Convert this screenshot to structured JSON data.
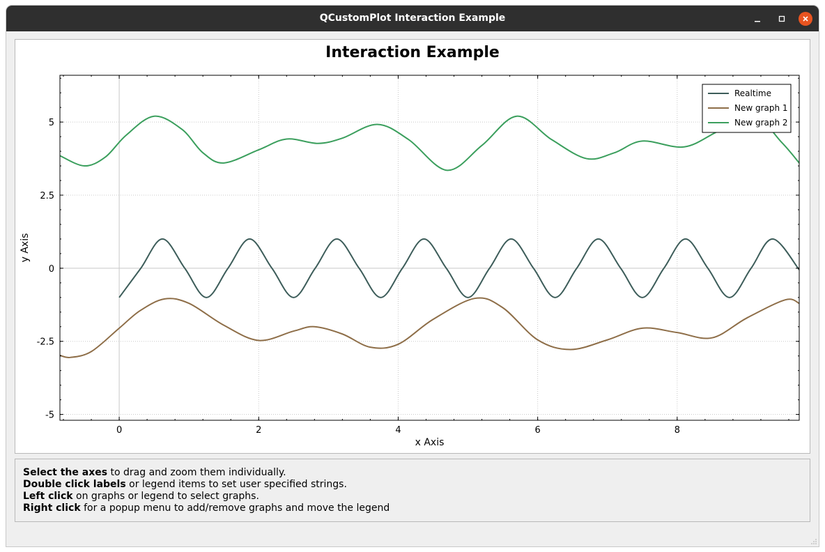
{
  "window": {
    "title": "QCustomPlot Interaction Example",
    "titlebar_color": "#2f2f2f",
    "close_color": "#e95420"
  },
  "plot": {
    "title": "Interaction Example",
    "legend_items": [
      "Realtime",
      "New graph 1",
      "New graph 2"
    ]
  },
  "chart_data": {
    "type": "line",
    "title": "Interaction Example",
    "xlabel": "x Axis",
    "ylabel": "y Axis",
    "xlim": [
      -0.85,
      9.75
    ],
    "ylim": [
      -5.2,
      6.6
    ],
    "x_ticks": [
      0,
      2,
      4,
      6,
      8
    ],
    "x_tick_labels": [
      "0",
      "2",
      "4",
      "6",
      "8"
    ],
    "y_ticks": [
      -5,
      -2.5,
      0,
      2.5,
      5
    ],
    "y_tick_labels": [
      "-5",
      "-2.5",
      "0",
      "2.5",
      "5"
    ],
    "grid": true,
    "legend_position": "top-right",
    "series": [
      {
        "name": "Realtime",
        "color": "#3d5d5a",
        "x": [
          0.0,
          0.31,
          0.62,
          0.94,
          1.25,
          1.56,
          1.87,
          2.19,
          2.5,
          2.81,
          3.12,
          3.44,
          3.75,
          4.06,
          4.37,
          4.69,
          5.0,
          5.31,
          5.62,
          5.94,
          6.25,
          6.56,
          6.87,
          7.19,
          7.5,
          7.81,
          8.12,
          8.44,
          8.75,
          9.06,
          9.37,
          9.75
        ],
        "y": [
          -1.0,
          0.0,
          1.0,
          0.0,
          -1.0,
          0.0,
          1.0,
          0.0,
          -1.0,
          0.0,
          1.0,
          0.0,
          -1.0,
          0.0,
          1.0,
          0.0,
          -1.0,
          0.0,
          1.0,
          0.0,
          -1.0,
          0.0,
          1.0,
          0.0,
          -1.0,
          0.0,
          1.0,
          0.0,
          -1.0,
          0.0,
          1.0,
          -0.05
        ]
      },
      {
        "name": "New graph 1",
        "color": "#8e6e48",
        "x": [
          -0.85,
          -0.7,
          -0.4,
          0.0,
          0.3,
          0.65,
          1.0,
          1.5,
          2.0,
          2.5,
          2.8,
          3.2,
          3.6,
          4.0,
          4.5,
          5.1,
          5.5,
          6.0,
          6.47,
          7.0,
          7.5,
          8.0,
          8.5,
          9.0,
          9.55,
          9.75
        ],
        "y": [
          -2.98,
          -3.05,
          -2.85,
          -2.05,
          -1.45,
          -1.05,
          -1.2,
          -1.95,
          -2.47,
          -2.15,
          -2.0,
          -2.25,
          -2.7,
          -2.6,
          -1.75,
          -1.03,
          -1.35,
          -2.45,
          -2.78,
          -2.45,
          -2.05,
          -2.2,
          -2.38,
          -1.7,
          -1.08,
          -1.2
        ]
      },
      {
        "name": "New graph 2",
        "color": "#3b9f5d",
        "x": [
          -0.85,
          -0.5,
          -0.2,
          0.1,
          0.5,
          0.9,
          1.2,
          1.5,
          2.0,
          2.4,
          2.85,
          3.2,
          3.7,
          4.15,
          4.7,
          5.2,
          5.7,
          6.2,
          6.7,
          7.1,
          7.5,
          8.1,
          8.6,
          9.1,
          9.5,
          9.75
        ],
        "y": [
          3.85,
          3.5,
          3.8,
          4.55,
          5.2,
          4.75,
          3.95,
          3.6,
          4.05,
          4.42,
          4.27,
          4.45,
          4.92,
          4.4,
          3.35,
          4.2,
          5.2,
          4.4,
          3.75,
          3.95,
          4.35,
          4.15,
          4.7,
          5.2,
          4.3,
          3.6
        ]
      }
    ]
  },
  "info": {
    "line1_bold": "Select the axes",
    "line1_rest": " to drag and zoom them individually.",
    "line2_bold": "Double click labels",
    "line2_rest": " or legend items to set user specified strings.",
    "line3_bold": "Left click",
    "line3_rest": " on graphs or legend to select graphs.",
    "line4_bold": "Right click",
    "line4_rest": " for a popup menu to add/remove graphs and move the legend"
  }
}
